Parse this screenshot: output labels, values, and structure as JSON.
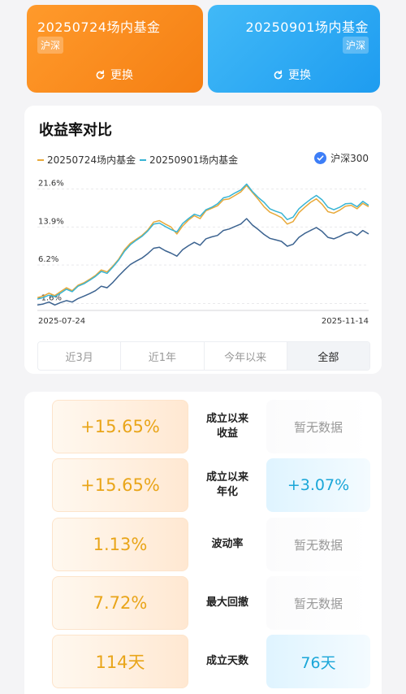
{
  "funds": [
    {
      "name": "20250724场内基金",
      "tag": "沪深",
      "swap_label": "更换",
      "color": "#f59525"
    },
    {
      "name": "20250901场内基金",
      "tag": "沪深",
      "swap_label": "更换",
      "color": "#2aa8f3"
    }
  ],
  "chart_section": {
    "title": "收益率对比",
    "benchmark_label": "沪深300",
    "benchmark_checked": true,
    "tabs": [
      {
        "label": "近3月",
        "active": false
      },
      {
        "label": "近1年",
        "active": false
      },
      {
        "label": "今年以来",
        "active": false
      },
      {
        "label": "全部",
        "active": true
      }
    ]
  },
  "chart_data": {
    "type": "line",
    "title": "收益率对比",
    "x_start_label": "2025-07-24",
    "x_end_label": "2025-11-14",
    "y_ticks": [
      "21.6%",
      "13.9%",
      "6.2%",
      "-1.6%"
    ],
    "y_tick_values": [
      21.6,
      13.9,
      6.2,
      -1.6
    ],
    "ylim": [
      -3,
      24
    ],
    "legend_position": "top",
    "series": [
      {
        "name": "20250724场内基金",
        "color": "#e8a93a",
        "values": [
          -0.4,
          -0.1,
          0.5,
          0.0,
          0.8,
          1.6,
          1.0,
          2.1,
          2.6,
          3.3,
          4.1,
          5.2,
          4.8,
          6.0,
          7.4,
          9.3,
          10.6,
          11.4,
          12.2,
          13.3,
          14.9,
          15.2,
          14.5,
          13.9,
          12.5,
          14.1,
          15.3,
          16.2,
          15.6,
          17.2,
          17.7,
          18.2,
          19.4,
          19.6,
          20.3,
          21.0,
          22.3,
          20.9,
          19.5,
          18.0,
          16.9,
          16.4,
          15.8,
          14.5,
          15.0,
          16.8,
          17.9,
          18.9,
          19.6,
          18.5,
          17.0,
          16.7,
          17.3,
          18.1,
          18.3,
          17.6,
          18.7,
          18.0
        ]
      },
      {
        "name": "20250901场内基金",
        "color": "#38b4d4",
        "values": [
          -0.7,
          -0.4,
          0.1,
          -0.2,
          0.5,
          1.3,
          0.8,
          1.9,
          2.4,
          3.1,
          3.9,
          4.9,
          4.5,
          5.8,
          7.2,
          9.0,
          10.3,
          11.2,
          12.0,
          13.1,
          14.5,
          14.7,
          14.0,
          13.4,
          12.9,
          14.6,
          15.6,
          16.5,
          16.1,
          17.4,
          17.9,
          18.6,
          19.8,
          20.1,
          20.8,
          21.4,
          22.6,
          21.1,
          19.9,
          18.9,
          17.6,
          17.1,
          16.7,
          15.4,
          15.9,
          17.6,
          18.6,
          19.5,
          20.3,
          19.4,
          17.9,
          17.4,
          17.9,
          18.6,
          18.7,
          18.0,
          19.1,
          18.3
        ]
      },
      {
        "name": "沪深300",
        "color": "#3c6390",
        "values": [
          -1.9,
          -1.7,
          -1.3,
          -1.9,
          -1.4,
          -1.0,
          -1.3,
          -0.6,
          -0.1,
          0.4,
          1.0,
          1.9,
          1.6,
          2.7,
          4.0,
          5.2,
          6.3,
          7.0,
          7.6,
          8.5,
          9.6,
          9.8,
          9.1,
          8.6,
          8.0,
          9.3,
          10.1,
          10.8,
          10.2,
          11.5,
          11.9,
          12.2,
          13.2,
          13.5,
          14.0,
          14.5,
          15.6,
          14.3,
          13.4,
          12.4,
          11.6,
          11.3,
          11.0,
          10.0,
          10.4,
          11.8,
          12.6,
          13.2,
          13.8,
          13.0,
          11.8,
          11.5,
          12.0,
          12.6,
          12.9,
          12.2,
          13.2,
          12.5
        ]
      }
    ]
  },
  "metrics": [
    {
      "label": [
        "成立以来",
        "收益"
      ],
      "left": "+15.65%",
      "right": "暂无数据",
      "right_has_data": false
    },
    {
      "label": [
        "成立以来",
        "年化"
      ],
      "left": "+15.65%",
      "right": "+3.07%",
      "right_has_data": true
    },
    {
      "label": [
        "波动率"
      ],
      "left": "1.13%",
      "right": "暂无数据",
      "right_has_data": false
    },
    {
      "label": [
        "最大回撤"
      ],
      "left": "7.72%",
      "right": "暂无数据",
      "right_has_data": false
    },
    {
      "label": [
        "成立天数"
      ],
      "left": "114天",
      "right": "76天",
      "right_has_data": true
    }
  ]
}
